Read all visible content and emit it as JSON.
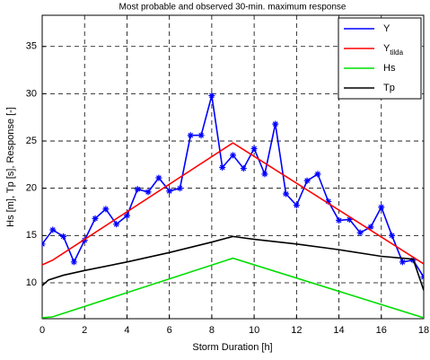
{
  "chart_data": {
    "type": "line",
    "title": "Most probable and observed 30-min. maximum response",
    "xlabel": "Storm Duration [h]",
    "ylabel": "Hs [m], Tp [s], Response [-]",
    "xlim": [
      0,
      18
    ],
    "ylim": [
      6.2,
      38.3
    ],
    "xticks": [
      0,
      2,
      4,
      6,
      8,
      10,
      12,
      14,
      16,
      18
    ],
    "yticks": [
      10,
      15,
      20,
      25,
      30,
      35
    ],
    "grid": true,
    "legend": "northeast",
    "series": [
      {
        "name": "Y",
        "color": "#0000ff",
        "marker": "*",
        "x": [
          0,
          0.5,
          1,
          1.5,
          2,
          2.5,
          3,
          3.5,
          4,
          4.5,
          5,
          5.5,
          6,
          6.5,
          7,
          7.5,
          8,
          8.5,
          9,
          9.5,
          10,
          10.5,
          11,
          11.5,
          12,
          12.5,
          13,
          13.5,
          14,
          14.5,
          15,
          15.5,
          16,
          16.5,
          17,
          17.5,
          18
        ],
        "values": [
          14.1,
          15.6,
          14.9,
          12.2,
          14.5,
          16.8,
          17.8,
          16.2,
          17.1,
          19.9,
          19.6,
          21.1,
          19.7,
          20.0,
          25.6,
          25.6,
          29.8,
          22.2,
          23.5,
          22.1,
          24.2,
          21.5,
          26.8,
          19.4,
          18.2,
          20.8,
          21.5,
          18.6,
          16.6,
          16.7,
          15.3,
          15.9,
          18.0,
          15.0,
          12.2,
          12.4,
          10.6
        ]
      },
      {
        "name": "Y_tilda",
        "color": "#ff0000",
        "x": [
          0,
          0.5,
          9,
          18
        ],
        "values": [
          11.9,
          12.4,
          24.8,
          12.0
        ]
      },
      {
        "name": "Hs",
        "color": "#00dd00",
        "x": [
          0,
          0.5,
          9,
          18
        ],
        "values": [
          6.3,
          6.4,
          12.6,
          6.3
        ]
      },
      {
        "name": "Tp",
        "color": "#000000",
        "x": [
          0,
          0.3,
          1,
          2,
          4,
          6,
          8,
          9,
          10,
          12,
          14,
          16,
          17.5,
          18
        ],
        "values": [
          9.7,
          10.3,
          10.8,
          11.3,
          12.2,
          13.2,
          14.3,
          14.9,
          14.6,
          14.1,
          13.5,
          12.8,
          12.5,
          9.2
        ]
      }
    ]
  }
}
